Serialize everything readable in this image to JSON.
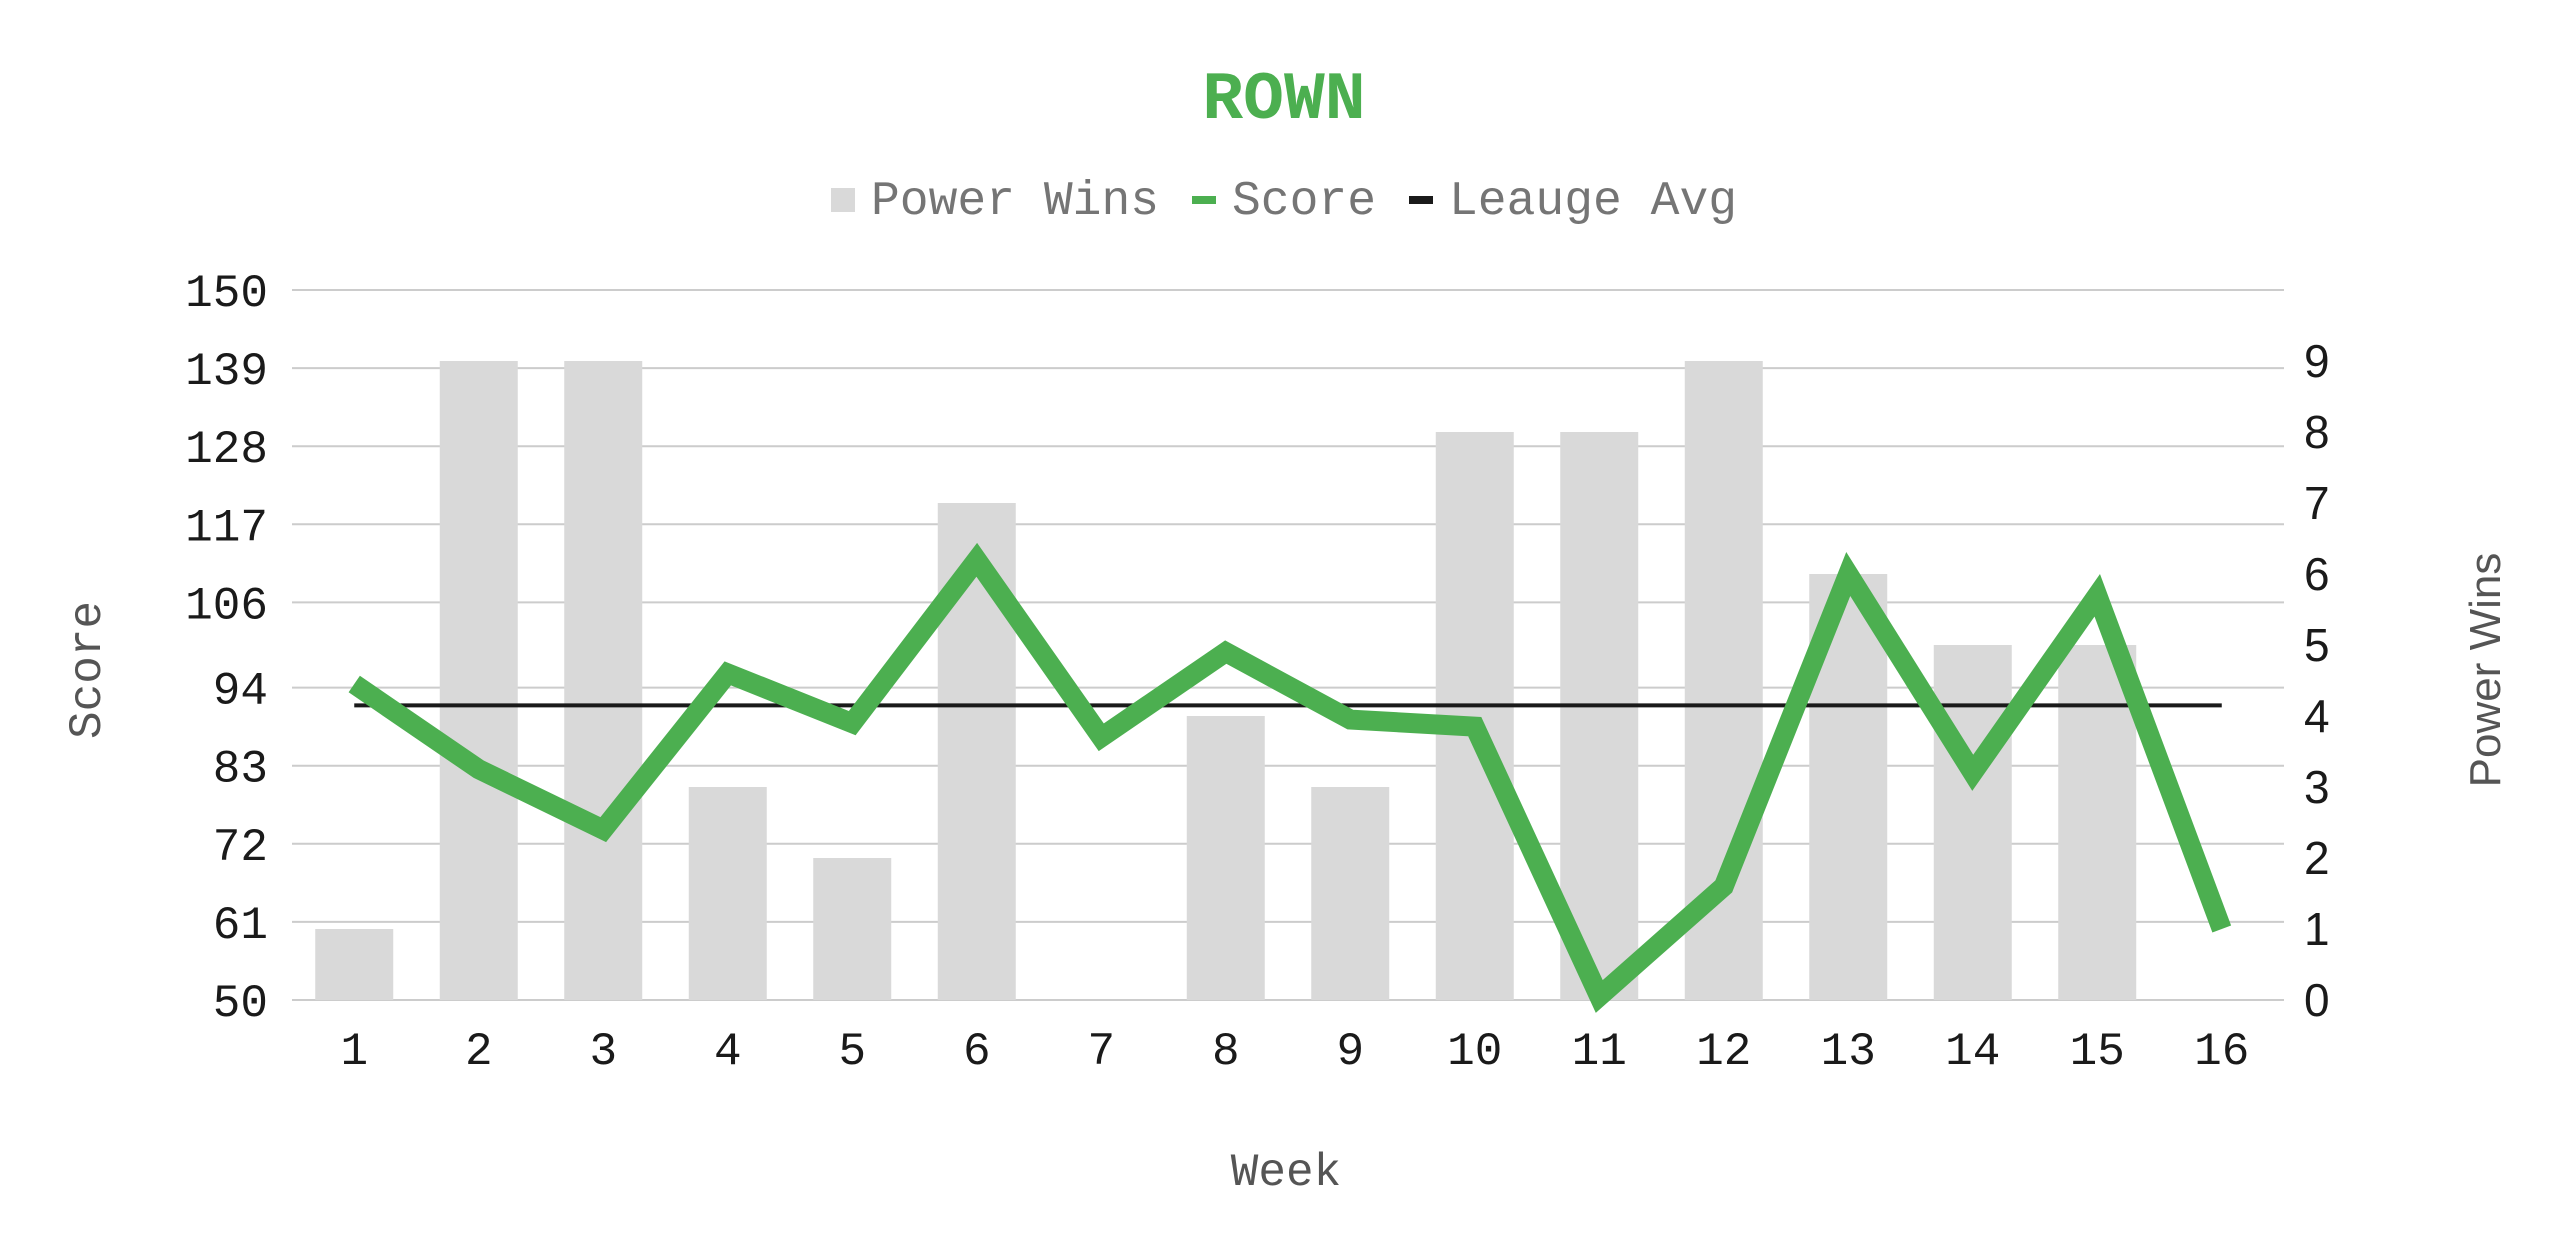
{
  "chart_data": {
    "type": "bar",
    "title": "ROWN",
    "xlabel": "Week",
    "ylabel": "Score",
    "y2label": "Power Wins",
    "categories": [
      "1",
      "2",
      "3",
      "4",
      "5",
      "6",
      "7",
      "8",
      "9",
      "10",
      "11",
      "12",
      "13",
      "14",
      "15",
      "16"
    ],
    "ylim": [
      50,
      150
    ],
    "yticks": [
      "50",
      "61",
      "72",
      "83",
      "94",
      "106",
      "117",
      "128",
      "139",
      "150"
    ],
    "y2lim": [
      0,
      10
    ],
    "y2ticks": [
      "0",
      "1",
      "2",
      "3",
      "4",
      "5",
      "6",
      "7",
      "8",
      "9"
    ],
    "grid": true,
    "legend_position": "top-center",
    "series": [
      {
        "name": "Power Wins",
        "kind": "bar",
        "axis": "right",
        "color": "#d9d9d9",
        "values": [
          1,
          9,
          9,
          3,
          2,
          7,
          0,
          4,
          3,
          8,
          8,
          9,
          6,
          5,
          5,
          0
        ]
      },
      {
        "name": "Score",
        "kind": "line",
        "axis": "left",
        "color": "#4caf50",
        "values": [
          94.5,
          82.5,
          74,
          96,
          89,
          112,
          87,
          99,
          89.5,
          88.5,
          50.5,
          66,
          110,
          82,
          107,
          60
        ]
      },
      {
        "name": "Leauge Avg",
        "kind": "line",
        "axis": "left",
        "color": "#1a1a1a",
        "values": [
          91.5,
          91.5,
          91.5,
          91.5,
          91.5,
          91.5,
          91.5,
          91.5,
          91.5,
          91.5,
          91.5,
          91.5,
          91.5,
          91.5,
          91.5,
          91.5
        ]
      }
    ],
    "colors": {
      "title": "#4caf50",
      "grid": "#cccccc",
      "text": "#1a1a1a"
    }
  }
}
